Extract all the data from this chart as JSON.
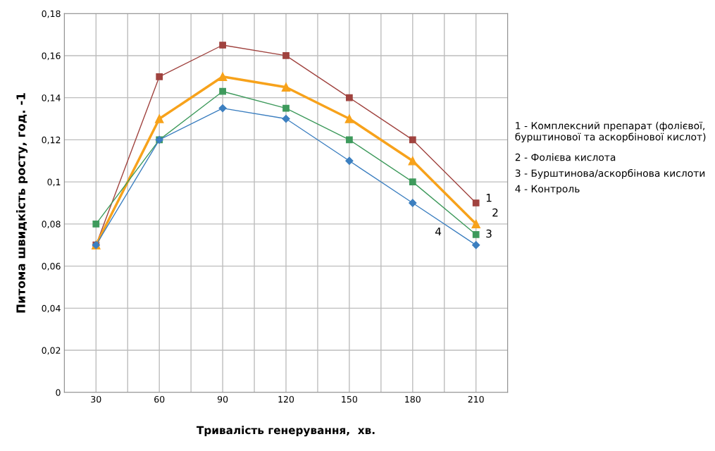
{
  "chart_data": {
    "type": "line",
    "xlabel": "Тривалість генерування,  хв.",
    "ylabel": "Питома швидкість росту, год. -1",
    "categories": [
      "30",
      "60",
      "90",
      "120",
      "150",
      "180",
      "210"
    ],
    "series": [
      {
        "name": "1",
        "color": "#a0433f",
        "marker": "square",
        "values": [
          0.07,
          0.15,
          0.165,
          0.16,
          0.14,
          0.12,
          0.09
        ]
      },
      {
        "name": "2",
        "color": "#f7a21b",
        "marker": "triangle",
        "values": [
          0.07,
          0.13,
          0.15,
          0.145,
          0.13,
          0.11,
          0.08
        ]
      },
      {
        "name": "3",
        "color": "#3e9a5c",
        "marker": "square",
        "values": [
          0.08,
          0.12,
          0.143,
          0.135,
          0.12,
          0.1,
          0.075
        ]
      },
      {
        "name": "4",
        "color": "#3c7fc0",
        "marker": "diamond",
        "values": [
          0.07,
          0.12,
          0.135,
          0.13,
          0.11,
          0.09,
          0.07
        ]
      }
    ],
    "ylim": [
      0,
      0.18
    ],
    "yticks": [
      {
        "value": 0,
        "label": "0"
      },
      {
        "value": 0.02,
        "label": "0,02"
      },
      {
        "value": 0.04,
        "label": "0,04"
      },
      {
        "value": 0.06,
        "label": "0,06"
      },
      {
        "value": 0.08,
        "label": "0,08"
      },
      {
        "value": 0.1,
        "label": "0,1"
      },
      {
        "value": 0.12,
        "label": "0,12"
      },
      {
        "value": 0.14,
        "label": "0,14"
      },
      {
        "value": 0.16,
        "label": "0,16"
      },
      {
        "value": 0.18,
        "label": "0,18"
      }
    ],
    "grid": true,
    "line_style": "solid",
    "legend": false,
    "annotations": [
      "1 - Комплексний препарат (фолієвої,\nбурштинової та аскорбінової кислот)",
      "2 - Фолієва кислота",
      "3 - Бурштинова/аскорбінова кислоти",
      "4 - Контроль"
    ]
  }
}
